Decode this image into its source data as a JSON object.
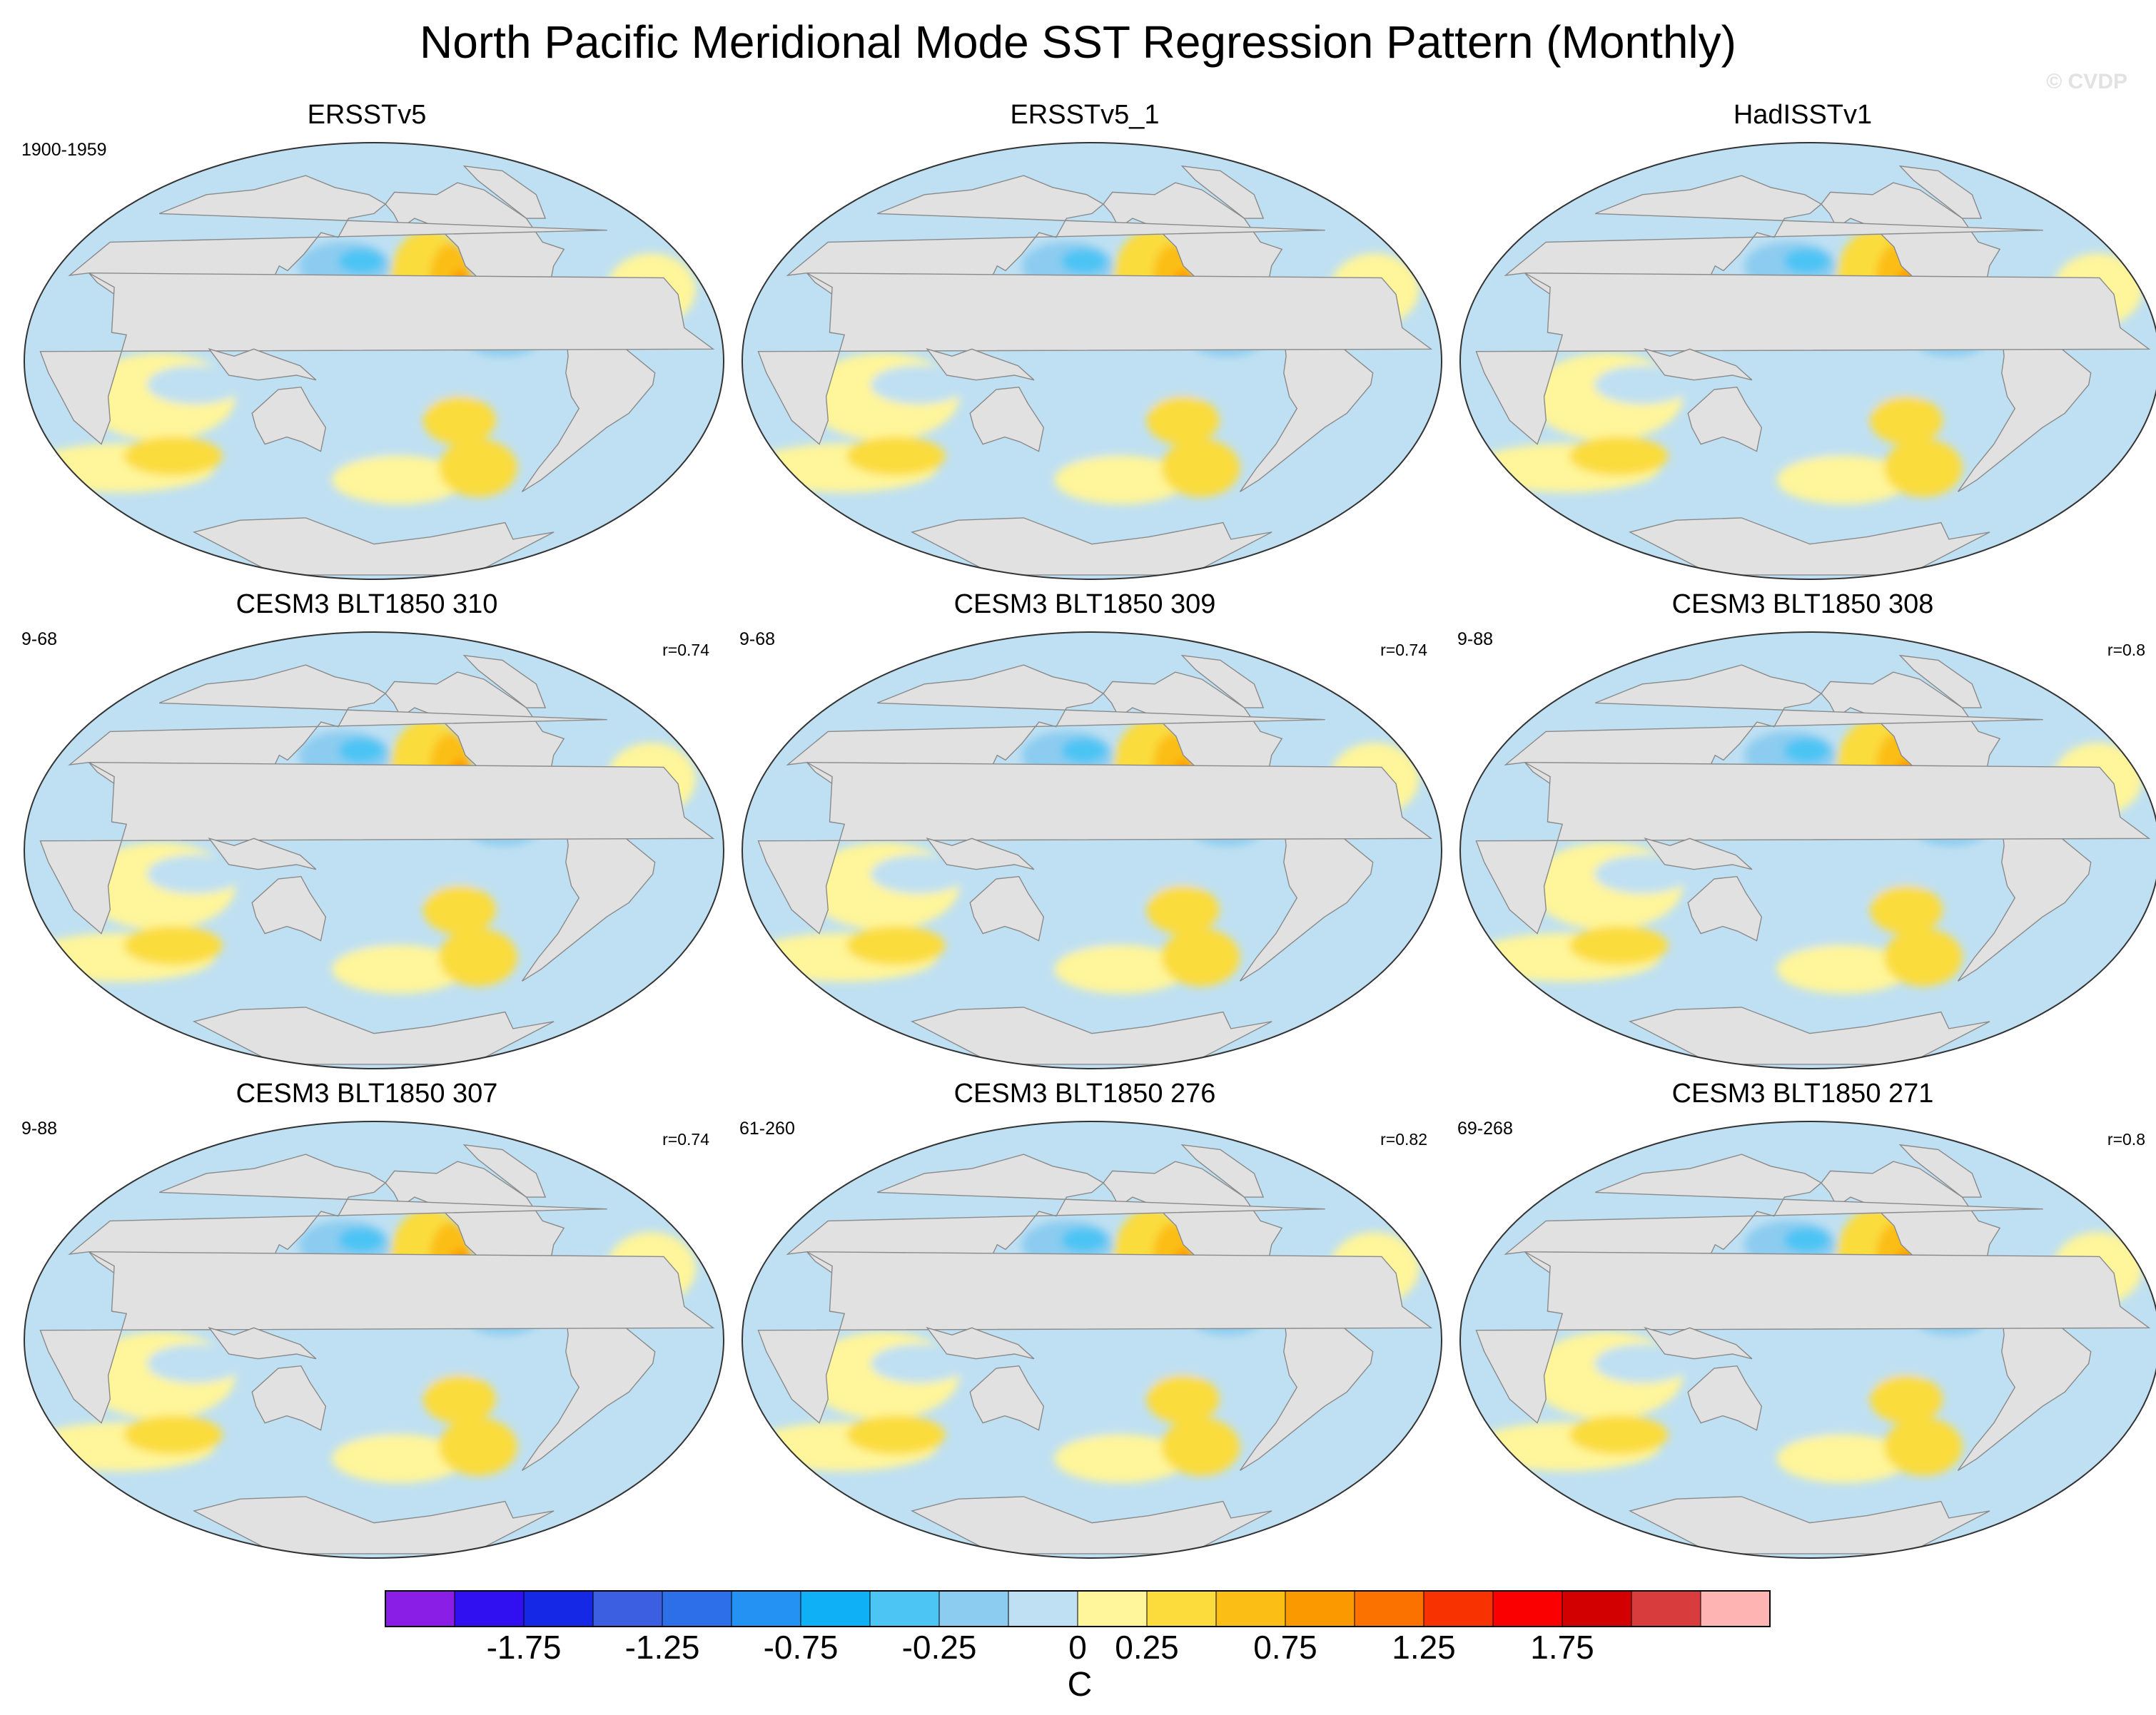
{
  "title": "North Pacific Meridional Mode SST Regression Pattern (Monthly)",
  "watermark": "© CVDP",
  "panels": [
    {
      "name": "ERSSTv5",
      "years": "1900-1959",
      "r": ""
    },
    {
      "name": "ERSSTv5_1",
      "years": "",
      "r": ""
    },
    {
      "name": "HadISSTv1",
      "years": "",
      "r": ""
    },
    {
      "name": "CESM3 BLT1850 310",
      "years": "9-68",
      "r": "r=0.74"
    },
    {
      "name": "CESM3 BLT1850 309",
      "years": "9-68",
      "r": "r=0.74"
    },
    {
      "name": "CESM3 BLT1850 308",
      "years": "9-88",
      "r": "r=0.8"
    },
    {
      "name": "CESM3 BLT1850 307",
      "years": "9-88",
      "r": "r=0.74"
    },
    {
      "name": "CESM3 BLT1850 276",
      "years": "61-260",
      "r": "r=0.82"
    },
    {
      "name": "CESM3 BLT1850 271",
      "years": "69-268",
      "r": "r=0.8"
    }
  ],
  "colorbar": {
    "unit": "C",
    "labels": [
      "-1.75",
      "-1.25",
      "-0.75",
      "-0.25",
      "0",
      "0.25",
      "0.75",
      "1.25",
      "1.75"
    ],
    "colors": [
      "#8a1ee6",
      "#3010f0",
      "#1428e6",
      "#3c5ee0",
      "#2c6fe8",
      "#2492f2",
      "#0fb0f6",
      "#4cc4f4",
      "#8cccf0",
      "#bfe0f2",
      "#fff59a",
      "#fbdc3c",
      "#fbbe14",
      "#fb9a00",
      "#fb7200",
      "#f83200",
      "#fa0000",
      "#d20000",
      "#d83c3c",
      "#ffb4b4"
    ],
    "map_colors": {
      "land": "#e1e1e1",
      "neutral_pos": "#fff59a",
      "neutral_neg": "#bfe0f2",
      "warm": "#fbdc3c",
      "warmer": "#fbbe14",
      "hot": "#fb9a00",
      "cool": "#8cccf0",
      "cold": "#4cc4f4"
    }
  }
}
